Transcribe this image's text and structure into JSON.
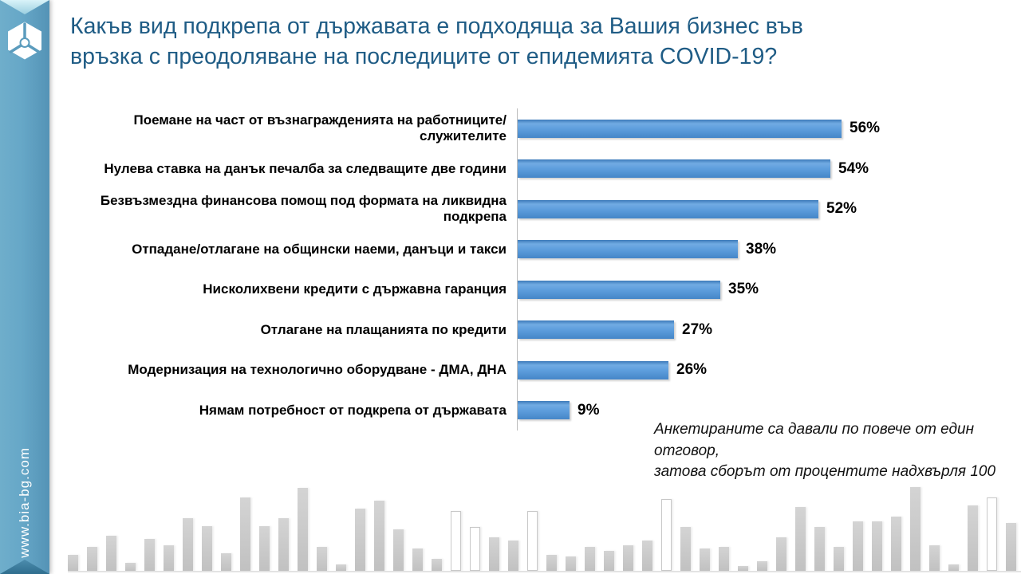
{
  "header": {
    "title_line1": "Какъв вид подкрепа от държавата е подходяща за Вашия бизнес във",
    "title_line2": "връзка с преодоляване на последиците от епидемията COVID-19?"
  },
  "sidebar": {
    "website": "www.bia-bg.com",
    "logo_icon": "bia-emblem-icon",
    "ribbon_color": "#62A2C2"
  },
  "chart_data": {
    "type": "bar",
    "orientation": "horizontal",
    "title": "",
    "categories": [
      "Поемане на част от възнагражденията на работниците/служителите",
      "Нулева ставка на данък печалба за следващите две години",
      "Безвъзмездна финансова помощ под формата на ликвидна подкрепа",
      "Отпадане/отлагане на общински наеми, данъци и такси",
      "Нисколихвени кредити с държавна гаранция",
      "Отлагане на плащанията по кредити",
      "Модернизация на технологично оборудване - ДМА, ДНА",
      "Нямам потребност от подкрепа от държавата"
    ],
    "values": [
      56,
      54,
      52,
      38,
      35,
      27,
      26,
      9
    ],
    "value_labels": [
      "56%",
      "54%",
      "52%",
      "38%",
      "35%",
      "27%",
      "26%",
      "9%"
    ],
    "bar_color": "#5B9BD5",
    "xlim": [
      0,
      65
    ],
    "grid": false,
    "legend": false,
    "value_label_position": "end-of-bar"
  },
  "footnote": {
    "line1": "Анкетираните са давали по повече от един отговор,",
    "line2": "затова сборът от процентите надхвърля 100"
  },
  "decoration": {
    "skyline_bars": [
      [
        20,
        0
      ],
      [
        30,
        0
      ],
      [
        44,
        0
      ],
      [
        10,
        0
      ],
      [
        40,
        0
      ],
      [
        32,
        0
      ],
      [
        66,
        0
      ],
      [
        56,
        0
      ],
      [
        22,
        0
      ],
      [
        92,
        0
      ],
      [
        56,
        0
      ],
      [
        66,
        0
      ],
      [
        104,
        0
      ],
      [
        30,
        0
      ],
      [
        8,
        0
      ],
      [
        78,
        0
      ],
      [
        88,
        0
      ],
      [
        52,
        0
      ],
      [
        28,
        0
      ],
      [
        15,
        0
      ],
      [
        75,
        1
      ],
      [
        55,
        1
      ],
      [
        42,
        0
      ],
      [
        38,
        0
      ],
      [
        75,
        1
      ],
      [
        20,
        0
      ],
      [
        18,
        0
      ],
      [
        30,
        0
      ],
      [
        25,
        0
      ],
      [
        32,
        0
      ],
      [
        38,
        0
      ],
      [
        90,
        1
      ],
      [
        55,
        0
      ],
      [
        28,
        0
      ],
      [
        30,
        0
      ],
      [
        6,
        0
      ],
      [
        12,
        0
      ],
      [
        42,
        0
      ],
      [
        80,
        0
      ],
      [
        55,
        0
      ],
      [
        30,
        0
      ],
      [
        62,
        0
      ],
      [
        62,
        0
      ],
      [
        68,
        0
      ],
      [
        105,
        0
      ],
      [
        32,
        0
      ],
      [
        8,
        0
      ],
      [
        82,
        0
      ],
      [
        92,
        1
      ],
      [
        60,
        0
      ],
      [
        30,
        0
      ],
      [
        18,
        0
      ]
    ]
  }
}
